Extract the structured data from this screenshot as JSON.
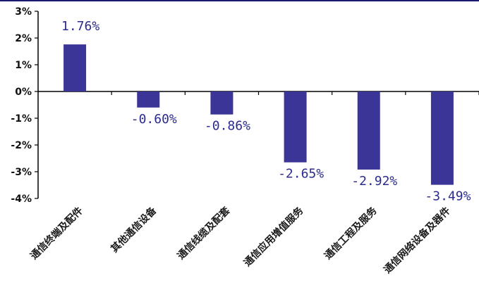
{
  "chart_data": {
    "type": "bar",
    "categories": [
      "通信终端及配件",
      "其他通信设备",
      "通信线缆及配套",
      "通信应用增值服务",
      "通信工程及服务",
      "通信网络设备及器件"
    ],
    "values": [
      1.76,
      -0.6,
      -0.86,
      -2.65,
      -2.92,
      -3.49
    ],
    "data_labels": [
      "1.76%",
      "-0.60%",
      "-0.86%",
      "-2.65%",
      "-2.92%",
      "-3.49%"
    ],
    "y_ticks": [
      3,
      2,
      1,
      0,
      -1,
      -2,
      -3,
      -4
    ],
    "y_tick_labels": [
      "3%",
      "2%",
      "1%",
      "0%",
      "-1%",
      "-2%",
      "-3%",
      "-4%"
    ],
    "ylim": [
      -4,
      3
    ],
    "grid": false,
    "legend": "none",
    "colors": {
      "bar": "#3a3596",
      "axis": "#000000",
      "label": "#2b2b8f"
    }
  }
}
